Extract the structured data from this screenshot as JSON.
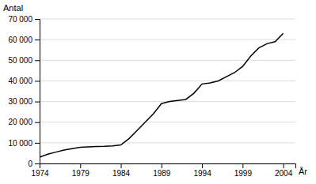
{
  "chart_data": {
    "type": "line",
    "xlabel": "År",
    "ylabel": "Antal",
    "x": [
      1974,
      1975,
      1976,
      1977,
      1978,
      1979,
      1980,
      1981,
      1982,
      1983,
      1984,
      1985,
      1986,
      1987,
      1988,
      1989,
      1990,
      1991,
      1992,
      1993,
      1994,
      1995,
      1996,
      1997,
      1998,
      1999,
      2000,
      2001,
      2002,
      2003,
      2004
    ],
    "values": [
      3000,
      4500,
      5500,
      6500,
      7200,
      7800,
      8000,
      8200,
      8300,
      8500,
      9000,
      12000,
      16000,
      20000,
      24000,
      29000,
      30000,
      30500,
      31000,
      34000,
      38500,
      39000,
      40000,
      42000,
      44000,
      47000,
      52000,
      56000,
      58000,
      59000,
      63000
    ],
    "color": "#000000",
    "xlim": [
      1974,
      2005.5
    ],
    "ylim": [
      0,
      70000
    ],
    "xticks": [
      1974,
      1979,
      1984,
      1989,
      1994,
      1999,
      2004
    ],
    "yticks": [
      0,
      {
        "value": 10000,
        "label": "10 000"
      },
      {
        "value": 20000,
        "label": "20 000"
      },
      {
        "value": 30000,
        "label": "30 000"
      },
      {
        "value": 40000,
        "label": "40 000"
      },
      {
        "value": 50000,
        "label": "50 000"
      },
      {
        "value": 60000,
        "label": "60 000"
      },
      {
        "value": 70000,
        "label": "70 000"
      }
    ],
    "grid": true
  }
}
